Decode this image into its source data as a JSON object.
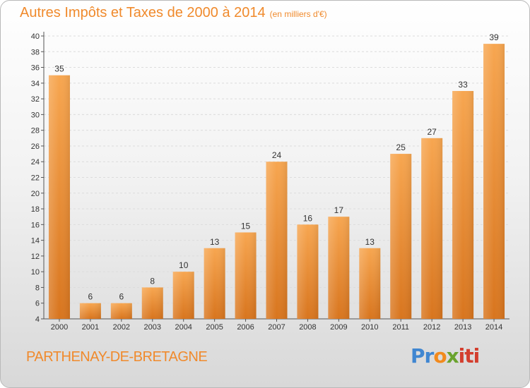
{
  "title": "Autres Impôts et Taxes de 2000 à 2014",
  "title_unit": "(en milliers d'€)",
  "city": "PARTHENAY-DE-BRETAGNE",
  "logo": {
    "p1": "Pr",
    "p2": "o",
    "p3": "x",
    "p4": "iti"
  },
  "colors": {
    "accent": "#f08a2c",
    "bar_top": "#f7a650",
    "bar_bottom": "#d8751e"
  },
  "chart_data": {
    "type": "bar",
    "title": "Autres Impôts et Taxes de 2000 à 2014",
    "categories": [
      "2000",
      "2001",
      "2002",
      "2003",
      "2004",
      "2005",
      "2006",
      "2007",
      "2008",
      "2009",
      "2010",
      "2011",
      "2012",
      "2013",
      "2014"
    ],
    "values": [
      35,
      6,
      6,
      8,
      10,
      13,
      15,
      24,
      16,
      17,
      13,
      25,
      27,
      33,
      39
    ],
    "ylim": [
      4,
      40
    ],
    "yticks": [
      4,
      6,
      8,
      10,
      12,
      14,
      16,
      18,
      20,
      22,
      24,
      26,
      28,
      30,
      32,
      34,
      36,
      38,
      40
    ],
    "grid": true,
    "xlabel": "",
    "ylabel": ""
  }
}
